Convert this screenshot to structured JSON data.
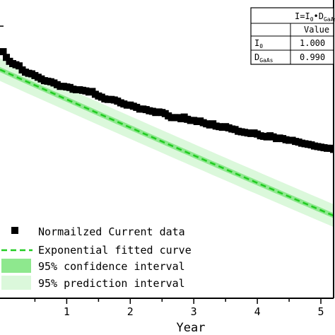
{
  "chart_data": {
    "type": "scatter",
    "title": "",
    "xlabel": "Year",
    "ylabel": "",
    "xlim": [
      -0.05,
      5.2
    ],
    "x_ticks": [
      1,
      2,
      3,
      4,
      5
    ],
    "x_tick_labels": [
      "1",
      "2",
      "3",
      "4",
      "5"
    ],
    "ylim": [
      0.92,
      1.025
    ],
    "grid": false,
    "legend_position": "lower-left",
    "legend": {
      "data_label": "Normailzed Current data",
      "fit_label": "Exponential fitted curve",
      "confidence_label": "95% confidence interval",
      "prediction_label": "95% prediction interval"
    },
    "fit": {
      "model": "I=I0*DGaAs^x",
      "I0": 1.0,
      "base": 0.99
    },
    "confidence_halfwidth": 0.0009,
    "prediction_halfwidth": 0.004,
    "colors": {
      "data": "#000000",
      "fit": "#22cc22",
      "confidence": "#8ee88e",
      "prediction": "#dbf8db"
    },
    "results_table": {
      "equation_main": "I=I",
      "equation_sub0": "0",
      "equation_dot": "•D",
      "equation_sub1": "GaAs",
      "value_header": "Value",
      "rows": [
        {
          "param_main": "I",
          "param_sub": "0",
          "value": "1.000"
        },
        {
          "param_main": "D",
          "param_sub": "GaAs",
          "value": "0.990"
        }
      ]
    },
    "series": [
      {
        "name": "Normailzed Current data",
        "x": [
          0.0,
          0.05,
          0.1,
          0.15,
          0.2,
          0.25,
          0.3,
          0.35,
          0.4,
          0.45,
          0.5,
          0.55,
          0.6,
          0.65,
          0.7,
          0.75,
          0.8,
          0.85,
          0.9,
          0.95,
          1.0,
          1.05,
          1.1,
          1.15,
          1.2,
          1.25,
          1.3,
          1.35,
          1.4,
          1.45,
          1.5,
          1.55,
          1.6,
          1.65,
          1.7,
          1.75,
          1.8,
          1.85,
          1.9,
          1.95,
          2.0,
          2.05,
          2.1,
          2.15,
          2.2,
          2.25,
          2.3,
          2.35,
          2.4,
          2.45,
          2.5,
          2.55,
          2.6,
          2.65,
          2.7,
          2.75,
          2.8,
          2.85,
          2.9,
          2.95,
          3.0,
          3.05,
          3.1,
          3.15,
          3.2,
          3.25,
          3.3,
          3.35,
          3.4,
          3.45,
          3.5,
          3.55,
          3.6,
          3.65,
          3.7,
          3.75,
          3.8,
          3.85,
          3.9,
          3.95,
          4.0,
          4.05,
          4.1,
          4.15,
          4.2,
          4.25,
          4.3,
          4.35,
          4.4,
          4.45,
          4.5,
          4.55,
          4.6,
          4.65,
          4.7,
          4.75,
          4.8,
          4.85,
          4.9,
          4.95,
          5.0,
          5.05,
          5.1,
          5.15,
          5.2
        ],
        "y": [
          1.0068,
          1.0048,
          1.0034,
          1.0026,
          1.0022,
          1.0018,
          1.0004,
          0.9996,
          0.9992,
          0.999,
          0.9984,
          0.9978,
          0.9972,
          0.9966,
          0.9964,
          0.9962,
          0.9958,
          0.9952,
          0.9946,
          0.9946,
          0.9944,
          0.9942,
          0.9936,
          0.9934,
          0.9934,
          0.9932,
          0.993,
          0.9926,
          0.9928,
          0.9918,
          0.9912,
          0.9908,
          0.9902,
          0.99,
          0.99,
          0.9898,
          0.9894,
          0.9888,
          0.9884,
          0.988,
          0.988,
          0.9876,
          0.9872,
          0.9866,
          0.9866,
          0.9864,
          0.986,
          0.9858,
          0.9854,
          0.9856,
          0.9854,
          0.985,
          0.9842,
          0.9836,
          0.9836,
          0.9836,
          0.9832,
          0.9838,
          0.983,
          0.9826,
          0.9826,
          0.9822,
          0.9824,
          0.9818,
          0.9814,
          0.981,
          0.9814,
          0.9806,
          0.9804,
          0.9802,
          0.9804,
          0.98,
          0.9796,
          0.9794,
          0.9788,
          0.9786,
          0.9784,
          0.9782,
          0.978,
          0.9782,
          0.9778,
          0.9772,
          0.977,
          0.9768,
          0.9772,
          0.9768,
          0.9762,
          0.9764,
          0.9762,
          0.9758,
          0.9756,
          0.9756,
          0.9752,
          0.975,
          0.9746,
          0.9744,
          0.9742,
          0.974,
          0.9736,
          0.9734,
          0.9732,
          0.973,
          0.9728,
          0.9728,
          0.9724
        ]
      }
    ]
  }
}
